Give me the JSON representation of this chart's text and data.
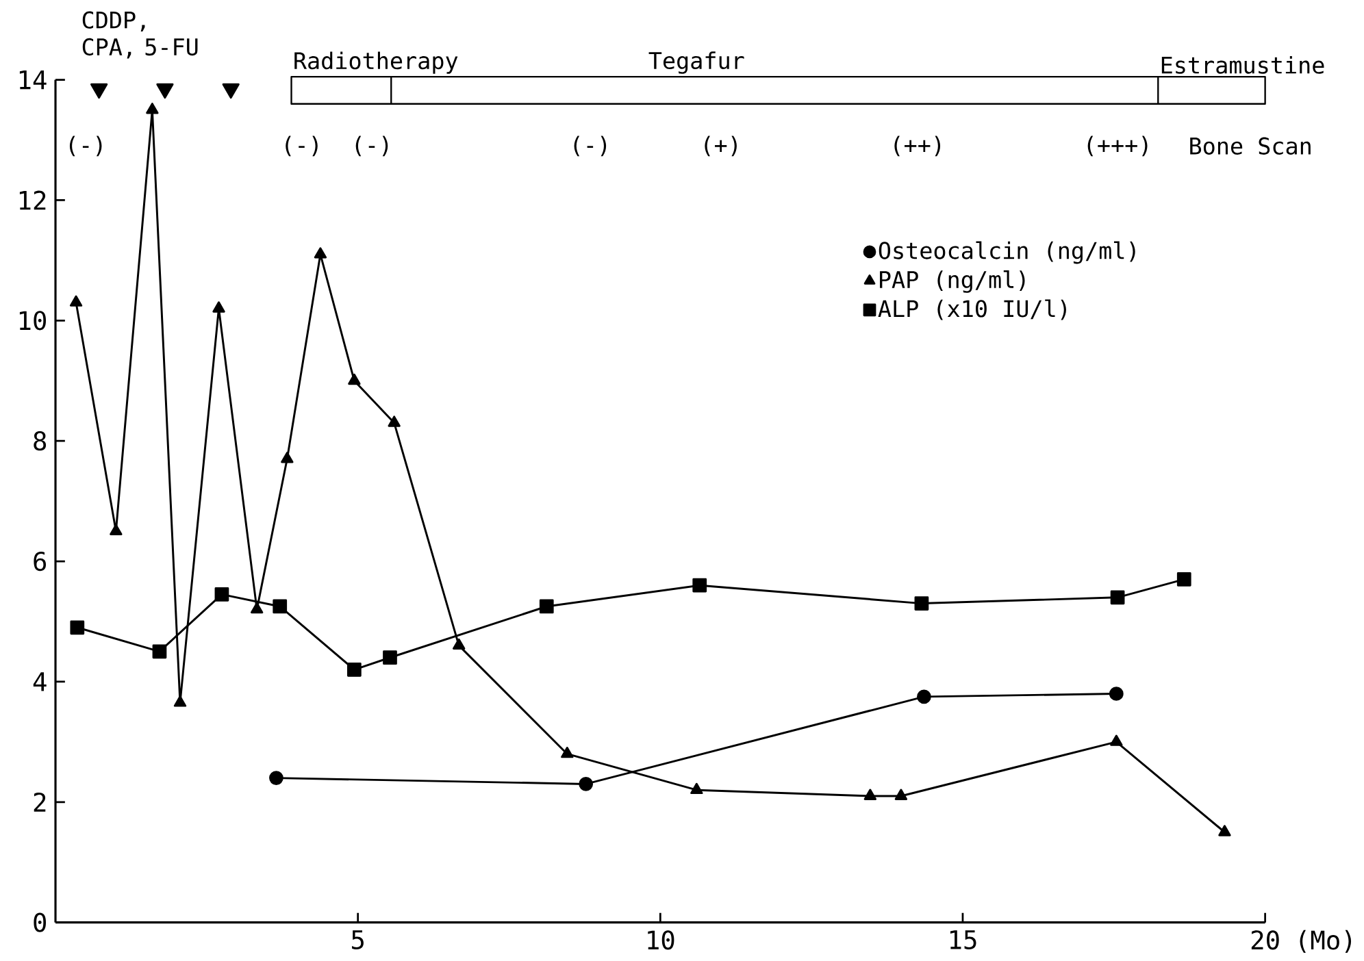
{
  "chart_data": {
    "type": "line",
    "xlabel": "(Mo)",
    "xlim": [
      0,
      20
    ],
    "xticks": [
      5,
      10,
      15,
      20
    ],
    "ylim": [
      0,
      14
    ],
    "yticks": [
      0,
      2,
      4,
      6,
      8,
      10,
      12,
      14
    ],
    "legend": "right",
    "series": [
      {
        "name": "Osteocalcin (ng/ml)",
        "color": "#000000",
        "marker": "circle",
        "x": [
          3.65,
          8.77,
          14.36,
          17.54
        ],
        "values": [
          2.4,
          2.3,
          3.75,
          3.8
        ]
      },
      {
        "name": "PAP (ng/ml)",
        "color": "#000000",
        "marker": "triangle",
        "x": [
          0.34,
          1.0,
          1.6,
          2.06,
          2.7,
          3.33,
          3.83,
          4.38,
          4.94,
          5.6,
          6.67,
          8.46,
          10.6,
          13.47,
          13.98,
          17.54,
          19.33
        ],
        "values": [
          10.3,
          6.5,
          13.5,
          3.65,
          10.2,
          5.2,
          7.7,
          11.1,
          9.0,
          8.3,
          4.6,
          2.8,
          2.2,
          2.1,
          2.1,
          3.0,
          1.5
        ]
      },
      {
        "name": "ALP (x10 IU/l)",
        "color": "#000000",
        "marker": "square",
        "x": [
          0.36,
          1.72,
          2.75,
          3.71,
          4.94,
          5.53,
          8.12,
          10.65,
          14.32,
          17.56,
          18.66
        ],
        "values": [
          4.9,
          4.5,
          5.45,
          5.25,
          4.2,
          4.4,
          5.25,
          5.6,
          5.3,
          5.4,
          5.7
        ]
      },
      {
        "type": "scatter",
        "color": "#000000",
        "marker": "triangle",
        "x": [
          0.72,
          1.81,
          2.9
        ],
        "values": [
          13.85,
          13.85,
          13.85
        ]
      }
    ],
    "annotations": [
      "CDDP, CPA, 5-FU",
      "Bone Scan",
      "(-)",
      "(-)",
      "(-)",
      "(-)",
      "(+)",
      "(++)",
      "(+++)",
      "Radiotherapy",
      "Tegafur",
      "Estramustine"
    ]
  }
}
